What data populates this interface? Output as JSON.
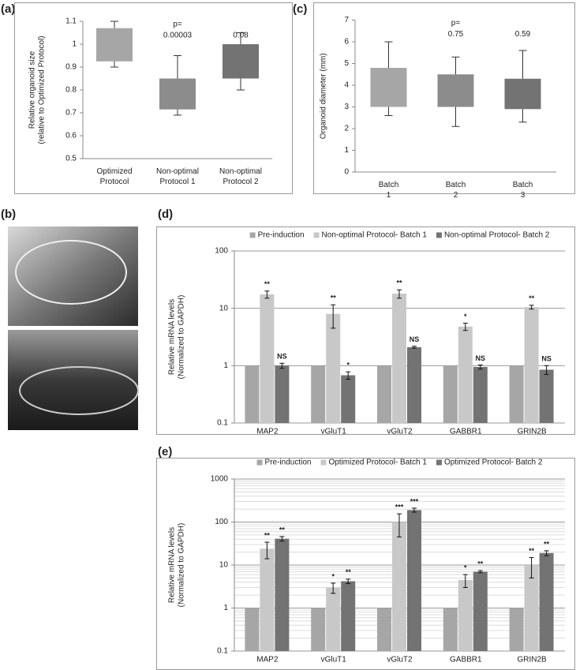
{
  "chart_data": [
    {
      "type": "box",
      "label": "(a)",
      "categories": [
        "Optimized Protocol",
        "Non-optimal Protocol 1",
        "Non-optimal Protocol 2"
      ],
      "boxes": [
        {
          "min": 0.9,
          "q1": 0.925,
          "q3": 1.07,
          "max": 1.1,
          "color": "#a6a6a6"
        },
        {
          "min": 0.69,
          "q1": 0.715,
          "q3": 0.85,
          "max": 0.95,
          "color": "#8c8c8c"
        },
        {
          "min": 0.8,
          "q1": 0.85,
          "q3": 1.0,
          "max": 1.05,
          "color": "#737373"
        }
      ],
      "ylabel": [
        "Relative organoid size",
        "(relative to Optimized Protocol)"
      ],
      "ylim": [
        0.5,
        1.1
      ],
      "yticks": [
        0.5,
        0.6,
        0.7,
        0.8,
        0.9,
        1,
        1.1
      ],
      "pvalue_label": "p=",
      "pvalues": [
        null,
        "0.00003",
        "0.08"
      ]
    },
    {
      "type": "box",
      "label": "(c)",
      "categories": [
        "Batch 1",
        "Batch 2",
        "Batch 3"
      ],
      "boxes": [
        {
          "min": 2.6,
          "q1": 3.0,
          "q3": 4.8,
          "max": 6.0,
          "color": "#a6a6a6"
        },
        {
          "min": 2.1,
          "q1": 3.0,
          "q3": 4.5,
          "max": 5.3,
          "color": "#8c8c8c"
        },
        {
          "min": 2.3,
          "q1": 2.9,
          "q3": 4.3,
          "max": 5.6,
          "color": "#737373"
        }
      ],
      "ylabel": [
        "Organoid diameter (mm)"
      ],
      "ylim": [
        0,
        7
      ],
      "yticks": [
        0,
        1,
        2,
        3,
        4,
        5,
        6,
        7
      ],
      "pvalue_label": "p=",
      "pvalues": [
        null,
        "0.75",
        "0.59"
      ]
    },
    {
      "type": "image",
      "label": "(b)"
    },
    {
      "type": "bar",
      "label": "(d)",
      "log_scale": true,
      "grid": true,
      "minor_grid": false,
      "legend": "top",
      "categories": [
        "MAP2",
        "vGluT1",
        "vGluT2",
        "GABBR1",
        "GRIN2B"
      ],
      "series": [
        {
          "name": "Pre-induction",
          "color": "#a6a6a6",
          "values": [
            1,
            1,
            1,
            1,
            1
          ]
        },
        {
          "name": "Non-optimal Protocol- Batch 1",
          "color": "#c8c8c8",
          "values": [
            17.5,
            8,
            18,
            4.8,
            10.5
          ],
          "errors": [
            2.5,
            3.5,
            3,
            0.7,
            0.8
          ],
          "labels": [
            "**",
            "**",
            "**",
            "*",
            "**"
          ]
        },
        {
          "name": "Non-optimal Protocol- Batch 2",
          "color": "#737373",
          "values": [
            1.0,
            0.68,
            2.1,
            0.95,
            0.85
          ],
          "errors": [
            0.1,
            0.1,
            0.08,
            0.08,
            0.15
          ],
          "labels": [
            "NS",
            "*",
            "NS",
            "NS",
            "NS"
          ]
        }
      ],
      "ylabel": [
        "Relative mRNA levels",
        "(Normalized to GAPDH)"
      ],
      "ylim": [
        0.1,
        100
      ],
      "yticks": [
        0.1,
        1,
        10,
        100
      ]
    },
    {
      "type": "bar",
      "label": "(e)",
      "log_scale": true,
      "grid": true,
      "minor_grid": true,
      "legend": "top",
      "categories": [
        "MAP2",
        "vGluT1",
        "vGluT2",
        "GABBR1",
        "GRIN2B"
      ],
      "series": [
        {
          "name": "Pre-induction",
          "color": "#a6a6a6",
          "values": [
            1,
            1,
            1,
            1,
            1
          ]
        },
        {
          "name": "Optimized Protocol- Batch 1",
          "color": "#c8c8c8",
          "values": [
            24,
            3,
            100,
            4.5,
            10
          ],
          "errors": [
            10,
            0.8,
            55,
            1.5,
            5
          ],
          "labels": [
            "**",
            "*",
            "***",
            "*",
            "**"
          ]
        },
        {
          "name": "Optimized Protocol- Batch 2",
          "color": "#737373",
          "values": [
            41,
            4.2,
            190,
            7,
            19
          ],
          "errors": [
            5,
            0.5,
            20,
            0.4,
            2.5
          ],
          "labels": [
            "**",
            "**",
            "***",
            "**",
            "**"
          ]
        }
      ],
      "ylabel": [
        "Relative mRNA levels",
        "(Normalized to GAPDH)"
      ],
      "ylim": [
        0.1,
        1000
      ],
      "yticks": [
        0.1,
        1,
        10,
        100,
        1000
      ]
    }
  ]
}
